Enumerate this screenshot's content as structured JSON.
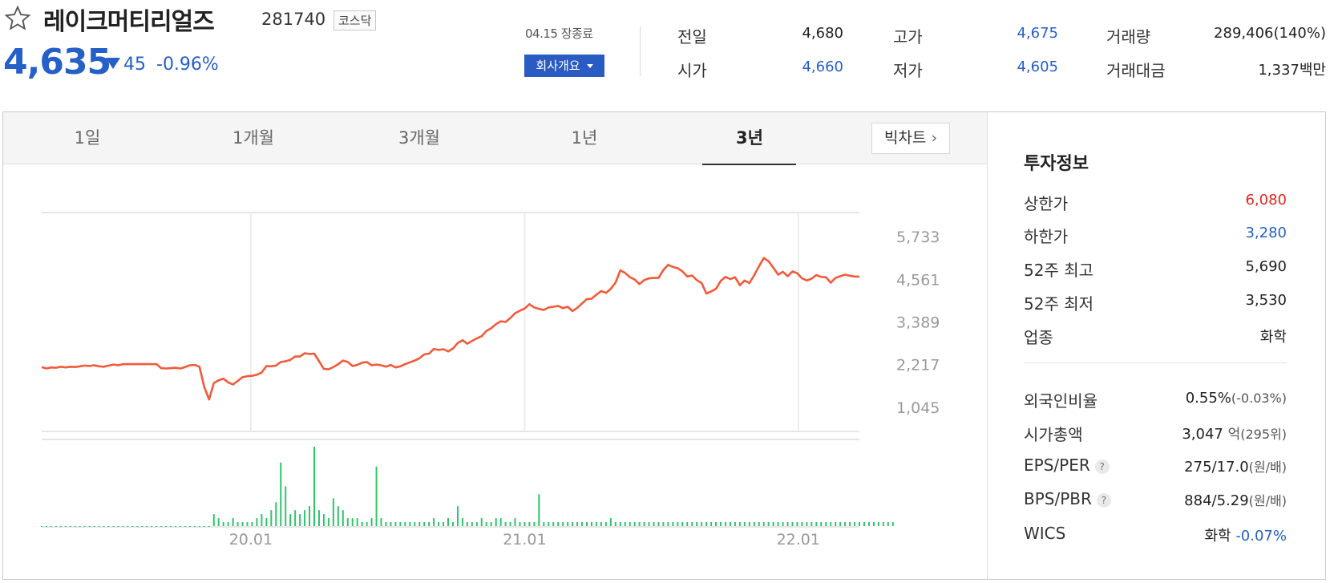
{
  "stock": {
    "name": "레이크머티리얼즈",
    "code": "281740",
    "market": "코스닥",
    "price": "4,635",
    "change": "45",
    "change_pct": "-0.96%",
    "date_status": "04.15 장종료",
    "overview_label": "회사개요"
  },
  "quote": {
    "prev_close_label": "전일",
    "prev_close": "4,680",
    "open_label": "시가",
    "open": "4,660",
    "high_label": "고가",
    "high": "4,675",
    "low_label": "저가",
    "low": "4,605",
    "volume_label": "거래량",
    "volume": "289,406(140%)",
    "amount_label": "거래대금",
    "amount": "1,337백만"
  },
  "tabs": [
    {
      "label": "1일"
    },
    {
      "label": "1개월"
    },
    {
      "label": "3개월"
    },
    {
      "label": "1년"
    },
    {
      "label": "3년",
      "active": true
    }
  ],
  "bigchart_label": "빅차트",
  "chart_data": {
    "type": "line",
    "y_ticks": [
      "5,733",
      "4,561",
      "3,389",
      "2,217",
      "1,045"
    ],
    "y_tick_values": [
      5733,
      4561,
      3389,
      2217,
      1045
    ],
    "x_ticks": [
      "20.01",
      "21.01",
      "22.01"
    ],
    "x_tick_positions": [
      0.2558,
      0.5906,
      0.9253
    ],
    "ylim": [
      380,
      6400
    ],
    "price": [
      2150,
      2110,
      2140,
      2130,
      2160,
      2140,
      2160,
      2150,
      2170,
      2190,
      2180,
      2200,
      2170,
      2160,
      2190,
      2220,
      2200,
      2230,
      2230,
      2230,
      2230,
      2230,
      2230,
      2230,
      2230,
      2120,
      2110,
      2120,
      2130,
      2110,
      2150,
      2200,
      2210,
      2160,
      1600,
      1260,
      1710,
      1790,
      1830,
      1730,
      1670,
      1770,
      1870,
      1900,
      1910,
      1940,
      2000,
      2180,
      2170,
      2190,
      2290,
      2310,
      2350,
      2440,
      2440,
      2530,
      2510,
      2520,
      2310,
      2100,
      2090,
      2150,
      2230,
      2330,
      2290,
      2180,
      2210,
      2270,
      2290,
      2200,
      2220,
      2200,
      2160,
      2210,
      2140,
      2170,
      2230,
      2280,
      2330,
      2390,
      2500,
      2520,
      2650,
      2620,
      2640,
      2580,
      2660,
      2810,
      2890,
      2790,
      2870,
      2940,
      3000,
      3140,
      3220,
      3330,
      3410,
      3390,
      3500,
      3630,
      3700,
      3760,
      3880,
      3790,
      3750,
      3720,
      3790,
      3810,
      3830,
      3770,
      3810,
      3690,
      3780,
      3900,
      4020,
      4030,
      4140,
      4240,
      4190,
      4300,
      4470,
      4810,
      4740,
      4620,
      4560,
      4430,
      4540,
      4590,
      4600,
      4600,
      4820,
      4960,
      4900,
      4870,
      4780,
      4640,
      4670,
      4540,
      4460,
      4170,
      4230,
      4300,
      4520,
      4630,
      4570,
      4620,
      4400,
      4530,
      4460,
      4680,
      4920,
      5150,
      5060,
      4880,
      4690,
      4770,
      4650,
      4780,
      4730,
      4590,
      4530,
      4580,
      4680,
      4630,
      4620,
      4470,
      4600,
      4650,
      4690,
      4660,
      4640,
      4635
    ],
    "volume": [
      0,
      0,
      0,
      0,
      0,
      0,
      0,
      0,
      0,
      0,
      0,
      0,
      0,
      0,
      0,
      0,
      0,
      0,
      0,
      0,
      0,
      0,
      0,
      0,
      0,
      0,
      0,
      0,
      0,
      0,
      0,
      0,
      0,
      0,
      0,
      0,
      1.5,
      1,
      0.5,
      0.5,
      1,
      0.5,
      0.5,
      0.5,
      0.5,
      1,
      1.5,
      1,
      2,
      3,
      8,
      5,
      1.5,
      2,
      1.5,
      2,
      2.5,
      10,
      2,
      1.5,
      1,
      3.5,
      2.5,
      2,
      1,
      1,
      1,
      0.5,
      0.5,
      1,
      7.5,
      1,
      0.5,
      0.5,
      0.5,
      0.5,
      0.5,
      0.5,
      0.5,
      0.5,
      0.5,
      0.5,
      1,
      0.5,
      0.5,
      1,
      0.5,
      2.5,
      1,
      0.5,
      0.5,
      0.5,
      1,
      0.5,
      0.5,
      1,
      1,
      0.5,
      0.5,
      1,
      0.5,
      0.5,
      0.5,
      0.5,
      4,
      0.5,
      0.5,
      0.5,
      0.5,
      0.5,
      0.5,
      0.5,
      0.5,
      0.5,
      0.5,
      0.5,
      0.5,
      0.5,
      0.5,
      1,
      0.5,
      0.5,
      0.5,
      0.5,
      0.5,
      0.5,
      0.5,
      0.5,
      0.5,
      0.5,
      0.5,
      0.5,
      0.5,
      0.5,
      0.5,
      0.5,
      0.5,
      0.5,
      0.5,
      0.5,
      0.5,
      0.5,
      0.5,
      0.5,
      0.5,
      0.5,
      0.5,
      0.5,
      0.5,
      0.5,
      0.5,
      0.5,
      0.5,
      0.5,
      0.5,
      0.5,
      0.5,
      0.5,
      0.5,
      0.5,
      0.5,
      0.5,
      0.5,
      0.5,
      0.5,
      0.5,
      0.5,
      0.5,
      0.5,
      0.5,
      0.5,
      0.5,
      0.5,
      0.5,
      0.5,
      0.5,
      0.5,
      0.5,
      0.5
    ],
    "line_color": "#f25a3a",
    "volume_color": "#2ec46a"
  },
  "invest": {
    "title": "투자정보",
    "items": [
      {
        "label": "상한가",
        "value": "6,080",
        "color": "red"
      },
      {
        "label": "하한가",
        "value": "3,280",
        "color": "blue"
      },
      {
        "label": "52주 최고",
        "value": "5,690"
      },
      {
        "label": "52주 최저",
        "value": "3,530"
      },
      {
        "label": "업종",
        "value": "화학"
      }
    ],
    "foreign_label": "외국인비율",
    "foreign_value": "0.55%",
    "foreign_sub": "(-0.03%)",
    "mcap_label": "시가총액",
    "mcap_value": "3,047",
    "mcap_unit": "억",
    "mcap_sub": "(295위)",
    "eps_label": "EPS/PER",
    "eps_value": "275/17.0",
    "eps_unit": "(원/배)",
    "bps_label": "BPS/PBR",
    "bps_value": "884/5.29",
    "bps_unit": "(원/배)",
    "qmark": "?",
    "wics_label": "WICS",
    "wics_value": "화학",
    "wics_change": "-0.07%"
  }
}
